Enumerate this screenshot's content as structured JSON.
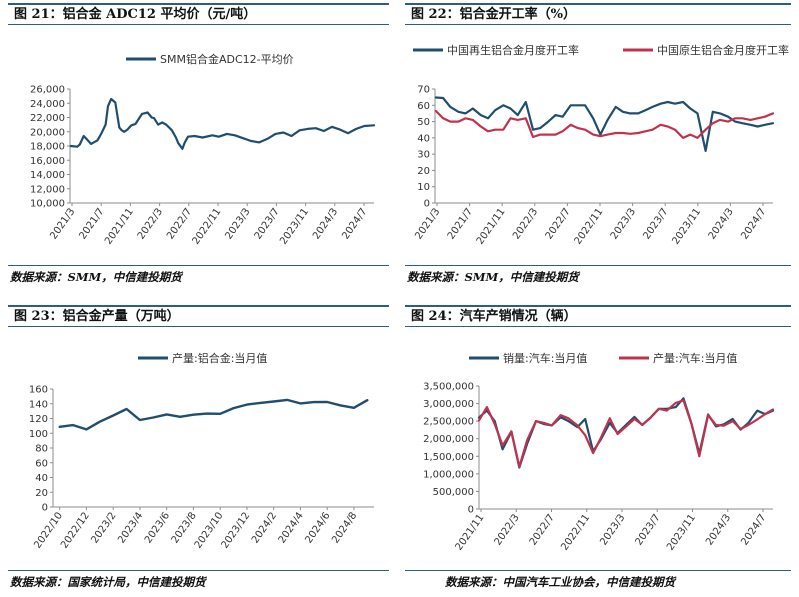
{
  "colors": {
    "rule": "#2d5f7a",
    "blue": "#1f4e6e",
    "red": "#c0334d",
    "grid": "#d9d9d9"
  },
  "panels": [
    {
      "title": "图 21：铝合金 ADC12 平均价（元/吨）",
      "source": "数据来源：SMM，中信建投期货"
    },
    {
      "title": "图 22：铝合金开工率（%）",
      "source": "数据来源：SMM，中信建投期货"
    },
    {
      "title": "图 23：铝合金产量（万吨）",
      "source": "数据来源：国家统计局，中信建投期货"
    },
    {
      "title": "图 24：汽车产销情况（辆）",
      "source": "数据来源：中国汽车工业协会，中信建投期货"
    }
  ],
  "chart_data": [
    {
      "type": "line",
      "title": "",
      "ylim": [
        10000,
        26000
      ],
      "yticks": [
        "10,000",
        "12,000",
        "14,000",
        "16,000",
        "18,000",
        "20,000",
        "22,000",
        "24,000",
        "26,000"
      ],
      "xticks": [
        "2021/3",
        "2021/7",
        "2021/11",
        "2022/3",
        "2022/7",
        "2022/11",
        "2023/3",
        "2023/7",
        "2023/11",
        "2024/3",
        "2024/7"
      ],
      "x_range": [
        2021.16,
        2024.92
      ],
      "grid": false,
      "legend": "top",
      "series": [
        {
          "name": "SMM铝合金ADC12-平均价",
          "color": "#1f4e6e",
          "x": [
            2021.17,
            2021.25,
            2021.28,
            2021.33,
            2021.38,
            2021.42,
            2021.5,
            2021.55,
            2021.6,
            2021.63,
            2021.67,
            2021.72,
            2021.77,
            2021.8,
            2021.83,
            2021.87,
            2021.92,
            2021.97,
            2022.05,
            2022.12,
            2022.17,
            2022.2,
            2022.25,
            2022.3,
            2022.35,
            2022.42,
            2022.47,
            2022.5,
            2022.55,
            2022.58,
            2022.62,
            2022.7,
            2022.8,
            2022.92,
            2023.0,
            2023.1,
            2023.2,
            2023.3,
            2023.4,
            2023.5,
            2023.6,
            2023.7,
            2023.8,
            2023.9,
            2024.0,
            2024.1,
            2024.2,
            2024.3,
            2024.4,
            2024.5,
            2024.6,
            2024.7,
            2024.8,
            2024.92
          ],
          "values": [
            18000,
            17900,
            18200,
            19400,
            18800,
            18300,
            18800,
            19800,
            21000,
            23600,
            24600,
            24100,
            20600,
            20200,
            20000,
            20300,
            20900,
            21100,
            22500,
            22700,
            22000,
            21900,
            21000,
            21300,
            21000,
            20200,
            19200,
            18400,
            17600,
            18500,
            19300,
            19400,
            19200,
            19500,
            19300,
            19700,
            19500,
            19100,
            18700,
            18500,
            19000,
            19700,
            19900,
            19400,
            20200,
            20400,
            20500,
            20100,
            20700,
            20300,
            19800,
            20400,
            20800,
            20900
          ]
        }
      ]
    },
    {
      "type": "line",
      "title": "",
      "ylim": [
        0,
        70
      ],
      "yticks": [
        "0",
        "10",
        "20",
        "30",
        "40",
        "50",
        "60",
        "70"
      ],
      "xticks": [
        "2021/3",
        "2021/7",
        "2021/11",
        "2022/3",
        "2022/7",
        "2022/11",
        "2023/3",
        "2023/7",
        "2023/11",
        "2024/3",
        "2024/7"
      ],
      "x_range": [
        2021.16,
        2024.92
      ],
      "grid": false,
      "legend": "top",
      "series": [
        {
          "name": "中国再生铝合金月度开工率",
          "color": "#1f4e6e",
          "x": [
            2021.17,
            2021.25,
            2021.33,
            2021.42,
            2021.5,
            2021.58,
            2021.67,
            2021.75,
            2021.83,
            2021.92,
            2022.0,
            2022.08,
            2022.17,
            2022.25,
            2022.33,
            2022.42,
            2022.5,
            2022.58,
            2022.67,
            2022.75,
            2022.83,
            2022.92,
            2023.0,
            2023.08,
            2023.17,
            2023.25,
            2023.33,
            2023.42,
            2023.5,
            2023.58,
            2023.67,
            2023.75,
            2023.83,
            2023.92,
            2024.0,
            2024.08,
            2024.17,
            2024.25,
            2024.33,
            2024.42,
            2024.5,
            2024.58,
            2024.67,
            2024.75,
            2024.83,
            2024.92
          ],
          "values": [
            64.8,
            64.5,
            59,
            56,
            55,
            58,
            54,
            52,
            57,
            60,
            58,
            54,
            62,
            45,
            46,
            50,
            54,
            53,
            60,
            60,
            60,
            52,
            42,
            51,
            59,
            56,
            55,
            55,
            57,
            59,
            61,
            62,
            61,
            62,
            58,
            55,
            32,
            56,
            55,
            53,
            50,
            49,
            48,
            47,
            48,
            49
          ]
        },
        {
          "name": "中国原生铝合金月度开工率",
          "color": "#c0334d",
          "x": [
            2021.17,
            2021.25,
            2021.33,
            2021.42,
            2021.5,
            2021.58,
            2021.67,
            2021.75,
            2021.83,
            2021.92,
            2022.0,
            2022.08,
            2022.17,
            2022.25,
            2022.33,
            2022.42,
            2022.5,
            2022.58,
            2022.67,
            2022.75,
            2022.83,
            2022.92,
            2023.0,
            2023.08,
            2023.17,
            2023.25,
            2023.33,
            2023.42,
            2023.5,
            2023.58,
            2023.67,
            2023.75,
            2023.83,
            2023.92,
            2024.0,
            2024.08,
            2024.17,
            2024.25,
            2024.33,
            2024.42,
            2024.5,
            2024.58,
            2024.67,
            2024.75,
            2024.83,
            2024.92
          ],
          "values": [
            56.5,
            52,
            50,
            50,
            52,
            51,
            47,
            44,
            45,
            45,
            52,
            51,
            52,
            40.5,
            42,
            42,
            42,
            44,
            48,
            46,
            45,
            42,
            41,
            42,
            43,
            43,
            42.5,
            43,
            44,
            45,
            48,
            47,
            45,
            40,
            42,
            40,
            45,
            49,
            51,
            50,
            52,
            52,
            51,
            52,
            53,
            55
          ]
        }
      ]
    },
    {
      "type": "line",
      "title": "",
      "ylim": [
        0,
        160
      ],
      "yticks": [
        "0",
        "20",
        "40",
        "60",
        "80",
        "100",
        "120",
        "140",
        "160"
      ],
      "xticks": [
        "2022/10",
        "2022/12",
        "2023/2",
        "2023/4",
        "2023/6",
        "2023/8",
        "2023/10",
        "2023/12",
        "2024/2",
        "2024/4",
        "2024/6",
        "2024/8"
      ],
      "grid": false,
      "legend": "top",
      "series": [
        {
          "name": "产量:铝合金:当月值",
          "color": "#1f4e6e",
          "x": [
            0,
            1,
            2,
            3,
            4,
            5,
            6,
            7,
            8,
            9,
            10,
            11,
            12,
            13,
            14,
            15,
            16,
            17,
            18,
            19,
            20,
            21,
            22,
            23
          ],
          "values": [
            108.8,
            111.1,
            105.2,
            115.6,
            124,
            132.9,
            117.9,
            121.4,
            125.6,
            122.3,
            125.2,
            126.6,
            126.4,
            134.1,
            138.8,
            141.1,
            143,
            145.2,
            140.5,
            142.3,
            142.4,
            137.8,
            134.5,
            144.8
          ]
        }
      ]
    },
    {
      "type": "line",
      "title": "",
      "ylim": [
        0,
        3500000
      ],
      "yticks": [
        "0",
        "500,000",
        "1,000,000",
        "1,500,000",
        "2,000,000",
        "2,500,000",
        "3,000,000",
        "3,500,000"
      ],
      "xticks": [
        "2021/11",
        "2022/3",
        "2022/7",
        "2022/11",
        "2023/3",
        "2023/7",
        "2023/11",
        "2024/3",
        "2024/7"
      ],
      "x_range": [
        2021.84,
        2024.83
      ],
      "grid": false,
      "legend": "top",
      "series": [
        {
          "name": "销量:汽车:当月值",
          "color": "#1f4e6e",
          "x": [
            2021.84,
            2021.92,
            2022.0,
            2022.08,
            2022.17,
            2022.25,
            2022.33,
            2022.42,
            2022.5,
            2022.58,
            2022.67,
            2022.75,
            2022.84,
            2022.92,
            2023.0,
            2023.08,
            2023.17,
            2023.25,
            2023.33,
            2023.42,
            2023.5,
            2023.58,
            2023.67,
            2023.75,
            2023.84,
            2023.92,
            2024.0,
            2024.08,
            2024.17,
            2024.25,
            2024.33,
            2024.42,
            2024.5,
            2024.58,
            2024.67,
            2024.75,
            2024.83
          ],
          "values": [
            2600000,
            2800000,
            2500000,
            1700000,
            2200000,
            1180000,
            1860000,
            2500000,
            2420000,
            2380000,
            2610000,
            2500000,
            2330000,
            2560000,
            1640000,
            1980000,
            2450000,
            2160000,
            2380000,
            2620000,
            2390000,
            2590000,
            2850000,
            2850000,
            2900000,
            3150000,
            2440000,
            1580000,
            2690000,
            2350000,
            2410000,
            2560000,
            2260000,
            2450000,
            2800000,
            2700000,
            2800000
          ]
        },
        {
          "name": "产量:汽车:当月值",
          "color": "#c0334d",
          "x": [
            2021.84,
            2021.92,
            2022.0,
            2022.08,
            2022.17,
            2022.25,
            2022.33,
            2022.42,
            2022.5,
            2022.58,
            2022.67,
            2022.75,
            2022.84,
            2022.92,
            2023.0,
            2023.08,
            2023.17,
            2023.25,
            2023.33,
            2023.42,
            2023.5,
            2023.58,
            2023.67,
            2023.75,
            2023.84,
            2023.92,
            2024.0,
            2024.08,
            2024.17,
            2024.25,
            2024.33,
            2024.42,
            2024.5,
            2024.58,
            2024.67,
            2024.75,
            2024.83
          ],
          "values": [
            2520000,
            2900000,
            2420000,
            1810000,
            2210000,
            1200000,
            1960000,
            2500000,
            2450000,
            2380000,
            2670000,
            2580000,
            2380000,
            2100000,
            1590000,
            2030000,
            2580000,
            2130000,
            2330000,
            2560000,
            2400000,
            2580000,
            2850000,
            2800000,
            3020000,
            3090000,
            2430000,
            1500000,
            2670000,
            2390000,
            2370000,
            2500000,
            2280000,
            2390000,
            2550000,
            2700000,
            2830000
          ]
        }
      ]
    }
  ]
}
